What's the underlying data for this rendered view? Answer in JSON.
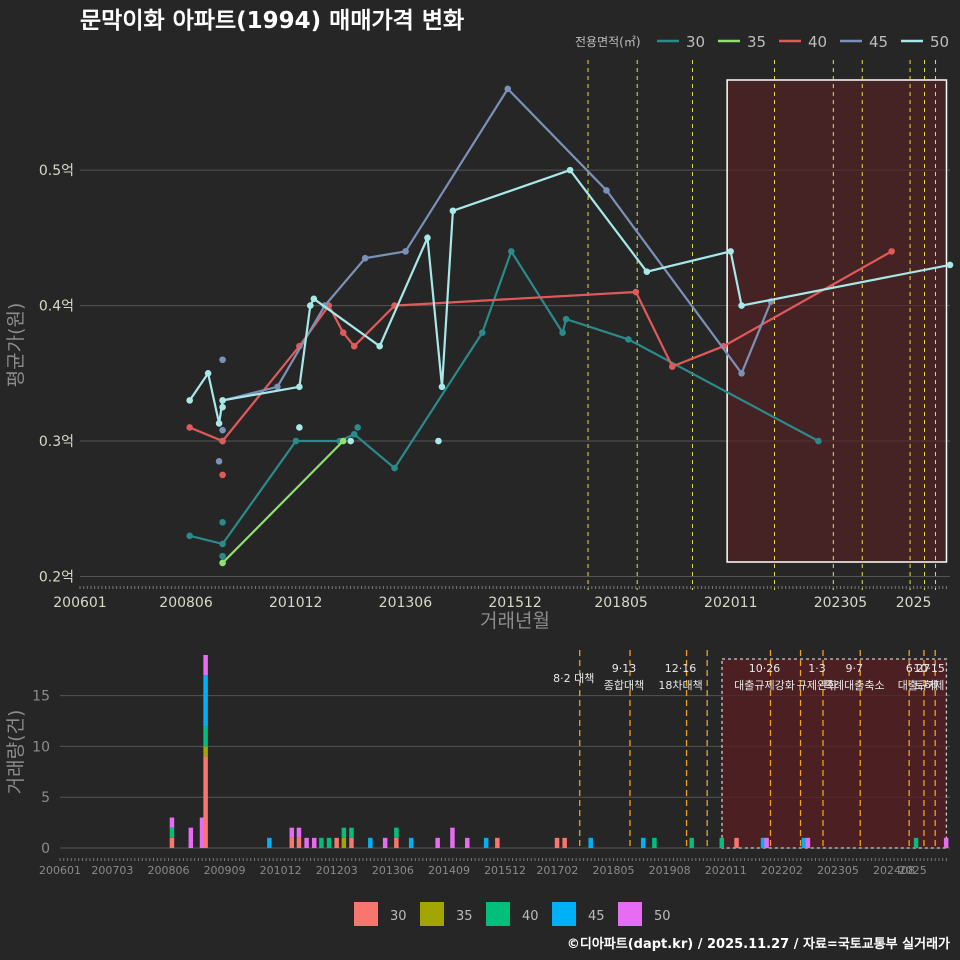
{
  "title": "문막이화 아파트(1994) 매매가격 변화",
  "footer": "©디아파트(dapt.kr) / 2025.11.27 / 자료=국토교통부 실거래가",
  "colors": {
    "30": "#2b8a8a",
    "35": "#90e070",
    "40": "#e05a5a",
    "45": "#7b91b8",
    "50": "#a8e8e8",
    "bar30": "#f8766d",
    "bar35": "#a3a500",
    "bar40": "#00bf7d",
    "bar45": "#00b0f6",
    "bar50": "#e76bf3"
  },
  "chart_data": [
    {
      "type": "line",
      "title": "문막이화 아파트(1994) 매매가격 변화",
      "xlabel": "거래년월",
      "ylabel": "평균가(원)",
      "legend_title": "전용면적(㎡)",
      "legend_position": "top-right",
      "x_ticks": [
        "200601",
        "200806",
        "201012",
        "201306",
        "201512",
        "201805",
        "202011",
        "202305",
        "2025"
      ],
      "y_ticks": [
        "0.2억",
        "0.3억",
        "0.4억",
        "0.5억"
      ],
      "xlim": [
        2006.0,
        2025.83
      ],
      "ylim": [
        0.19,
        0.585
      ],
      "highlight_range": [
        2020.75,
        2025.75
      ],
      "policy_lines": [
        2017.58,
        2018.7,
        2019.96,
        2021.83,
        2023.17,
        2023.83,
        2024.92,
        2025.25,
        2025.5
      ],
      "series": [
        {
          "name": "30",
          "points": [
            [
              2008.5,
              0.23
            ],
            [
              2009.25,
              0.224
            ],
            [
              2010.92,
              0.3
            ],
            [
              2011.92,
              0.3
            ],
            [
              2012.25,
              0.305
            ],
            [
              2013.17,
              0.28
            ],
            [
              2015.17,
              0.38
            ],
            [
              2015.83,
              0.44
            ],
            [
              2017.0,
              0.38
            ],
            [
              2017.08,
              0.39
            ],
            [
              2018.5,
              0.375
            ],
            [
              2022.83,
              0.3
            ]
          ],
          "scatter": [
            [
              2009.25,
              0.24
            ],
            [
              2009.25,
              0.215
            ],
            [
              2009.25,
              0.21
            ],
            [
              2012.33,
              0.31
            ]
          ]
        },
        {
          "name": "35",
          "points": [
            [
              2009.25,
              0.21
            ],
            [
              2012.0,
              0.3
            ]
          ],
          "scatter": []
        },
        {
          "name": "40",
          "points": [
            [
              2008.5,
              0.31
            ],
            [
              2009.25,
              0.3
            ],
            [
              2011.0,
              0.37
            ],
            [
              2011.67,
              0.4
            ],
            [
              2012.0,
              0.38
            ],
            [
              2012.25,
              0.37
            ],
            [
              2013.17,
              0.4
            ],
            [
              2018.67,
              0.41
            ],
            [
              2019.5,
              0.355
            ],
            [
              2020.67,
              0.37
            ],
            [
              2024.5,
              0.44
            ]
          ],
          "scatter": [
            [
              2009.25,
              0.275
            ],
            [
              2009.25,
              0.3
            ]
          ]
        },
        {
          "name": "45",
          "points": [
            [
              2009.25,
              0.33
            ],
            [
              2010.5,
              0.34
            ],
            [
              2011.58,
              0.4
            ],
            [
              2012.5,
              0.435
            ],
            [
              2013.42,
              0.44
            ],
            [
              2015.75,
              0.56
            ],
            [
              2018.0,
              0.485
            ],
            [
              2021.08,
              0.35
            ],
            [
              2021.75,
              0.403
            ]
          ],
          "scatter": [
            [
              2009.25,
              0.36
            ],
            [
              2009.25,
              0.308
            ],
            [
              2009.17,
              0.285
            ]
          ]
        },
        {
          "name": "50",
          "points": [
            [
              2008.5,
              0.33
            ],
            [
              2008.92,
              0.35
            ],
            [
              2009.17,
              0.313
            ],
            [
              2009.25,
              0.33
            ],
            [
              2011.0,
              0.34
            ],
            [
              2011.25,
              0.4
            ],
            [
              2011.33,
              0.405
            ],
            [
              2012.83,
              0.37
            ],
            [
              2013.92,
              0.45
            ],
            [
              2014.25,
              0.34
            ],
            [
              2014.5,
              0.47
            ],
            [
              2017.17,
              0.5
            ],
            [
              2018.92,
              0.425
            ],
            [
              2020.83,
              0.44
            ],
            [
              2021.08,
              0.4
            ],
            [
              2025.83,
              0.43
            ]
          ],
          "scatter": [
            [
              2009.25,
              0.325
            ],
            [
              2011.0,
              0.31
            ],
            [
              2014.17,
              0.3
            ],
            [
              2012.17,
              0.3
            ]
          ]
        }
      ]
    },
    {
      "type": "bar",
      "stacked": true,
      "ylabel": "거래량(건)",
      "legend_position": "bottom",
      "x_ticks": [
        "200601",
        "200703",
        "200806",
        "200909",
        "201012",
        "201203",
        "201306",
        "201409",
        "201512",
        "201702",
        "201805",
        "201908",
        "202011",
        "202202",
        "202305",
        "202408",
        "2025"
      ],
      "y_ticks": [
        "0",
        "5",
        "10",
        "15"
      ],
      "ylim": [
        0,
        19
      ],
      "xlim": [
        2006.0,
        2025.83
      ],
      "highlight_range": [
        2020.75,
        2025.75
      ],
      "policy_lines": [
        2017.58,
        2018.7,
        2019.96,
        2020.42,
        2021.83,
        2022.5,
        2023.0,
        2023.83,
        2024.92,
        2025.25,
        2025.5
      ],
      "policy_labels": [
        {
          "x": 2017.58,
          "lines": [
            "8·2 대책"
          ]
        },
        {
          "x": 2018.7,
          "lines": [
            "9·13",
            "종합대책"
          ]
        },
        {
          "x": 2019.96,
          "lines": [
            "12·16",
            "18차대책"
          ]
        },
        {
          "x": 2021.83,
          "lines": [
            "10·26",
            "대출규제강화"
          ]
        },
        {
          "x": 2023.0,
          "lines": [
            "1·3",
            "규제완화"
          ]
        },
        {
          "x": 2023.83,
          "lines": [
            "9·7",
            "특례대출축소"
          ]
        },
        {
          "x": 2025.25,
          "lines": [
            "6·27",
            "대출규제"
          ]
        },
        {
          "x": 2025.5,
          "lines": [
            "10·15",
            "토허제"
          ]
        }
      ],
      "series_names": [
        "30",
        "35",
        "40",
        "45",
        "50"
      ],
      "bars": [
        {
          "x": 2008.5,
          "values": [
            1,
            0,
            1,
            0,
            1
          ]
        },
        {
          "x": 2008.92,
          "values": [
            0,
            0,
            0,
            0,
            2
          ]
        },
        {
          "x": 2009.17,
          "values": [
            0,
            0,
            0,
            0,
            3
          ]
        },
        {
          "x": 2009.25,
          "values": [
            9,
            1,
            2,
            5,
            2
          ]
        },
        {
          "x": 2010.67,
          "values": [
            0,
            0,
            0,
            1,
            0
          ]
        },
        {
          "x": 2011.17,
          "values": [
            1,
            0,
            0,
            0,
            1
          ]
        },
        {
          "x": 2011.33,
          "values": [
            1,
            0,
            0,
            0,
            1
          ]
        },
        {
          "x": 2011.5,
          "values": [
            0,
            0,
            0,
            0,
            1
          ]
        },
        {
          "x": 2011.67,
          "values": [
            0,
            0,
            0,
            0,
            1
          ]
        },
        {
          "x": 2011.83,
          "values": [
            0,
            0,
            1,
            0,
            0
          ]
        },
        {
          "x": 2012.0,
          "values": [
            0,
            0,
            1,
            0,
            0
          ]
        },
        {
          "x": 2012.17,
          "values": [
            1,
            0,
            0,
            0,
            0
          ]
        },
        {
          "x": 2012.33,
          "values": [
            0,
            1,
            1,
            0,
            0
          ]
        },
        {
          "x": 2012.5,
          "values": [
            1,
            0,
            1,
            0,
            0
          ]
        },
        {
          "x": 2012.92,
          "values": [
            0,
            0,
            0,
            1,
            0
          ]
        },
        {
          "x": 2013.25,
          "values": [
            0,
            0,
            0,
            0,
            1
          ]
        },
        {
          "x": 2013.5,
          "values": [
            1,
            0,
            1,
            0,
            0
          ]
        },
        {
          "x": 2013.83,
          "values": [
            0,
            0,
            0,
            1,
            0
          ]
        },
        {
          "x": 2014.42,
          "values": [
            0,
            0,
            0,
            0,
            1
          ]
        },
        {
          "x": 2014.75,
          "values": [
            0,
            0,
            0,
            0,
            2
          ]
        },
        {
          "x": 2015.08,
          "values": [
            0,
            0,
            0,
            0,
            1
          ]
        },
        {
          "x": 2015.5,
          "values": [
            0,
            0,
            0,
            1,
            0
          ]
        },
        {
          "x": 2015.75,
          "values": [
            1,
            0,
            0,
            0,
            0
          ]
        },
        {
          "x": 2017.08,
          "values": [
            1,
            0,
            0,
            0,
            0
          ]
        },
        {
          "x": 2017.25,
          "values": [
            1,
            0,
            0,
            0,
            0
          ]
        },
        {
          "x": 2017.83,
          "values": [
            0,
            0,
            0,
            1,
            0
          ]
        },
        {
          "x": 2019.0,
          "values": [
            0,
            0,
            0,
            1,
            0
          ]
        },
        {
          "x": 2019.25,
          "values": [
            0,
            0,
            1,
            0,
            0
          ]
        },
        {
          "x": 2020.08,
          "values": [
            0,
            0,
            1,
            0,
            0
          ]
        },
        {
          "x": 2020.75,
          "values": [
            0,
            0,
            1,
            0,
            0
          ]
        },
        {
          "x": 2021.08,
          "values": [
            1,
            0,
            0,
            0,
            0
          ]
        },
        {
          "x": 2021.67,
          "values": [
            0,
            0,
            0,
            1,
            0
          ]
        },
        {
          "x": 2021.75,
          "values": [
            0,
            0,
            0,
            0,
            1
          ]
        },
        {
          "x": 2022.58,
          "values": [
            0,
            0,
            0,
            1,
            0
          ]
        },
        {
          "x": 2022.67,
          "values": [
            0,
            0,
            0,
            0,
            1
          ]
        },
        {
          "x": 2025.08,
          "values": [
            0,
            0,
            1,
            0,
            0
          ]
        },
        {
          "x": 2025.75,
          "values": [
            0,
            0,
            0,
            0,
            1
          ]
        }
      ]
    }
  ]
}
